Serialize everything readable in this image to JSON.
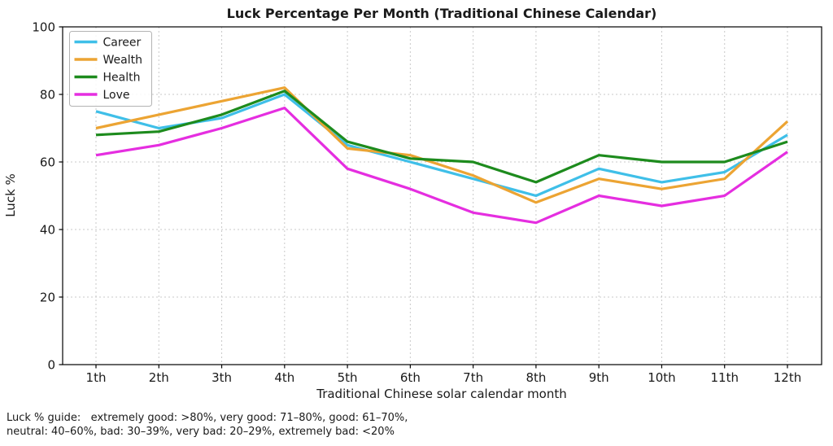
{
  "title": "Luck Percentage Per Month (Traditional Chinese Calendar)",
  "chart_data": {
    "type": "line",
    "categories": [
      "1th",
      "2th",
      "3th",
      "4th",
      "5th",
      "6th",
      "7th",
      "8th",
      "9th",
      "10th",
      "11th",
      "12th"
    ],
    "series": [
      {
        "name": "Career",
        "color": "#3fbfe8",
        "values": [
          75,
          70,
          73,
          80,
          65,
          60,
          55,
          50,
          58,
          54,
          57,
          68
        ]
      },
      {
        "name": "Wealth",
        "color": "#eca433",
        "values": [
          70,
          74,
          78,
          82,
          64,
          62,
          56,
          48,
          55,
          52,
          55,
          72
        ]
      },
      {
        "name": "Health",
        "color": "#1d8b1d",
        "values": [
          68,
          69,
          74,
          81,
          66,
          61,
          60,
          54,
          62,
          60,
          60,
          66
        ]
      },
      {
        "name": "Love",
        "color": "#e52ee0",
        "values": [
          62,
          65,
          70,
          76,
          58,
          52,
          45,
          42,
          50,
          47,
          50,
          63
        ]
      }
    ],
    "title": "Luck Percentage Per Month (Traditional Chinese Calendar)",
    "xlabel": "Traditional Chinese solar calendar month",
    "ylabel": "Luck %",
    "ylim": [
      0,
      100
    ],
    "yticks": [
      0,
      20,
      40,
      60,
      80,
      100
    ],
    "grid": true,
    "grid_style": "dashed",
    "legend_position": "upper left",
    "legend_entries": [
      "Career",
      "Wealth",
      "Health",
      "Love"
    ]
  },
  "footnote": {
    "line1": "Luck % guide:   extremely good: >80%, very good: 71–80%, good: 61–70%,",
    "line2": "neutral: 40–60%, bad: 30–39%, very bad: 20–29%, extremely bad: <20%"
  },
  "colors": {
    "grid": "#c9c9c9",
    "spine": "#000000",
    "text": "#1a1a1a",
    "legend_border": "#b3b3b3"
  }
}
